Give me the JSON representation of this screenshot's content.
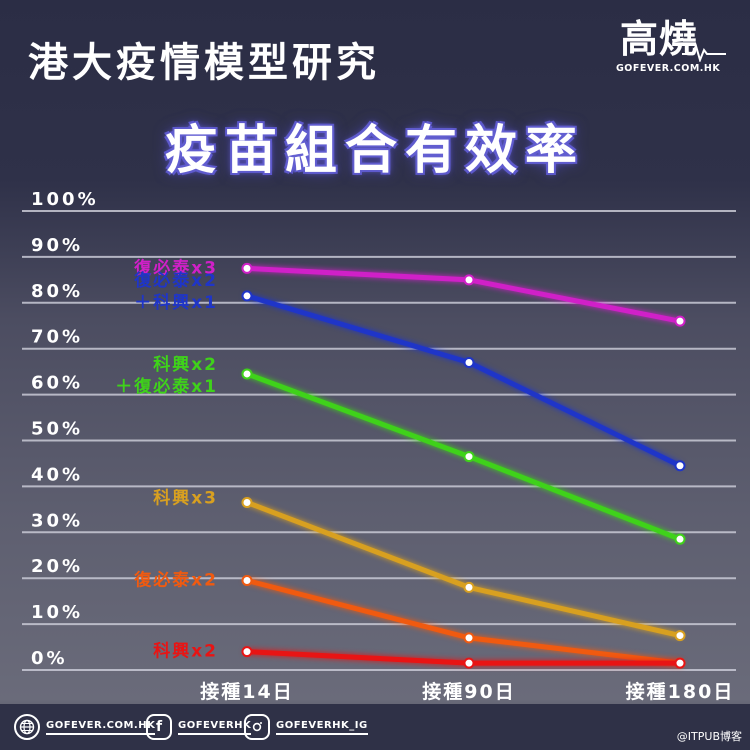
{
  "header": {
    "title": "港大疫情模型研究",
    "subtitle": "疫苗組合有效率",
    "logo_text": "高燒",
    "logo_url": "GOFEVER.COM.HK"
  },
  "footer": {
    "website": "GOFEVER.COM.HK",
    "facebook": "GOFEVERHK",
    "instagram": "GOFEVERHK_IG",
    "watermark": "@ITPUB博客"
  },
  "colors": {
    "background": "#2f3147",
    "grid": "#c9cad6",
    "text": "#ffffff"
  },
  "chart_data": {
    "type": "line",
    "title": "疫苗組合有效率",
    "categories": [
      "接種14日",
      "接種90日",
      "接種180日"
    ],
    "ylim": [
      0,
      100
    ],
    "yticks": [
      "0%",
      "10%",
      "20%",
      "30%",
      "40%",
      "50%",
      "60%",
      "70%",
      "80%",
      "90%",
      "100%"
    ],
    "grid": true,
    "legend": "inline labels left of first point",
    "series": [
      {
        "name": "復必泰x3",
        "values": [
          87.5,
          85,
          76
        ],
        "color": "#d020c8"
      },
      {
        "name": "復必泰x2\n＋科興x1",
        "values": [
          81.5,
          67,
          44.5
        ],
        "color": "#1f35c8"
      },
      {
        "name": "科興x2\n＋復必泰x1",
        "values": [
          64.5,
          46.5,
          28.5
        ],
        "color": "#3fd21a"
      },
      {
        "name": "科興x3",
        "values": [
          36.5,
          18,
          7.5
        ],
        "color": "#d8a020"
      },
      {
        "name": "復必泰x2",
        "values": [
          19.5,
          7,
          1.5
        ],
        "color": "#f05a10"
      },
      {
        "name": "科興x2",
        "values": [
          4,
          1.5,
          1.5
        ],
        "color": "#e81414"
      }
    ]
  }
}
